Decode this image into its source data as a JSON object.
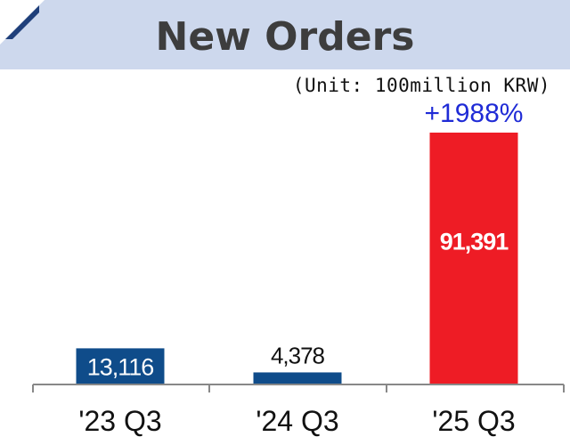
{
  "title": "New Orders",
  "unit_label": "(Unit: 100million KRW)",
  "colors": {
    "title_bar": "#cdd8ed",
    "corner_icon": "#1f3f7a",
    "bar_blue": "#0f4c8a",
    "bar_red": "#ee1c25",
    "growth_text": "#1f2bd6",
    "axis": "#888888"
  },
  "chart_data": {
    "type": "bar",
    "categories": [
      "'23 Q3",
      "'24 Q3",
      "'25 Q3"
    ],
    "values": [
      13116,
      4378,
      91391
    ],
    "value_labels": [
      "13,116",
      "4,378",
      "91,391"
    ],
    "bar_colors": [
      "#0f4c8a",
      "#0f4c8a",
      "#ee1c25"
    ],
    "annotation": "+1988%",
    "ylim": [
      0,
      91391
    ],
    "grid": false,
    "legend": "none"
  }
}
